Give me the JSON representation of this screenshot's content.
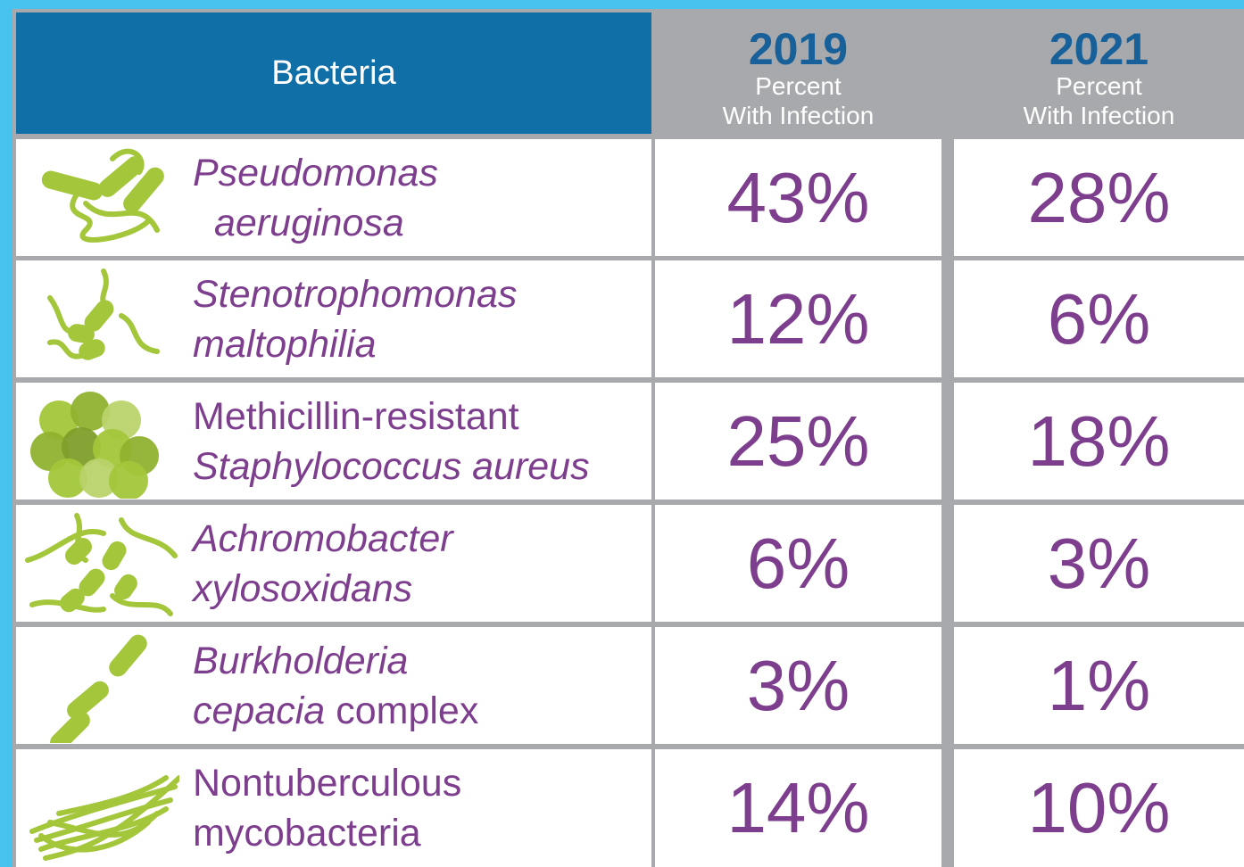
{
  "table": {
    "header": {
      "name_column": "Bacteria",
      "years": [
        {
          "year": "2019",
          "line1": "Percent",
          "line2": "With Infection"
        },
        {
          "year": "2021",
          "line1": "Percent",
          "line2": "With Infection"
        }
      ]
    },
    "rows": [
      {
        "name": [
          [
            {
              "text": "Pseudomonas",
              "italic": true
            }
          ],
          [
            {
              "text": "aeruginosa",
              "italic": true
            }
          ]
        ],
        "values": [
          "43%",
          "28%"
        ]
      },
      {
        "name": [
          [
            {
              "text": "Stenotrophomonas",
              "italic": true
            }
          ],
          [
            {
              "text": "maltophilia",
              "italic": true
            }
          ]
        ],
        "values": [
          "12%",
          "6%"
        ]
      },
      {
        "name": [
          [
            {
              "text": "Methicillin-resistant",
              "italic": false
            }
          ],
          [
            {
              "text": "Staphylococcus aureus",
              "italic": true
            }
          ]
        ],
        "values": [
          "25%",
          "18%"
        ]
      },
      {
        "name": [
          [
            {
              "text": "Achromobacter",
              "italic": true
            }
          ],
          [
            {
              "text": "xylosoxidans",
              "italic": true
            }
          ]
        ],
        "values": [
          "6%",
          "3%"
        ]
      },
      {
        "name": [
          [
            {
              "text": "Burkholderia",
              "italic": true
            }
          ],
          [
            {
              "text": "cepacia",
              "italic": true
            },
            {
              "text": "complex",
              "italic": false
            }
          ]
        ],
        "values": [
          "3%",
          "1%"
        ]
      },
      {
        "name": [
          [
            {
              "text": "Nontuberculous",
              "italic": false
            }
          ],
          [
            {
              "text": "mycobacteria",
              "italic": false
            }
          ]
        ],
        "values": [
          "14%",
          "10%"
        ]
      }
    ]
  }
}
